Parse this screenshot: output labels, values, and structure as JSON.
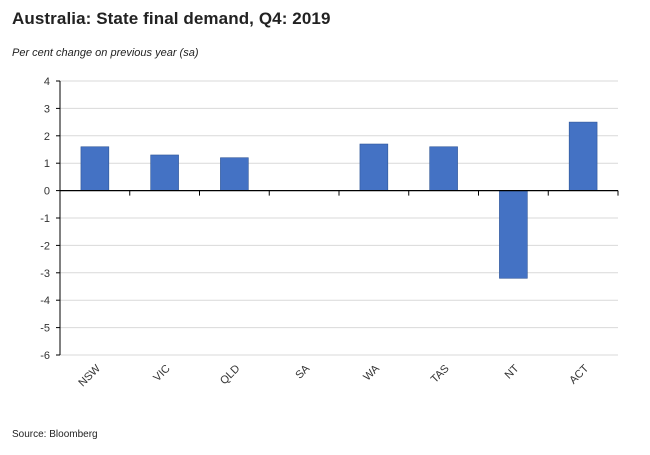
{
  "title": "Australia: State final demand, Q4: 2019",
  "subtitle": "Per cent change on previous year (sa)",
  "source": "Source: Bloomberg",
  "colors": {
    "bar": "#4472C4",
    "bar_edge": "#2F5597",
    "grid": "#D9D9D9",
    "axis": "#000000"
  },
  "chart_data": {
    "type": "bar",
    "title": "Australia: State final demand, Q4: 2019",
    "ylabel": "Per cent change on previous year (sa)",
    "xlabel": "",
    "categories": [
      "NSW",
      "VIC",
      "QLD",
      "SA",
      "WA",
      "TAS",
      "NT",
      "ACT"
    ],
    "values": [
      1.6,
      1.3,
      1.2,
      0.0,
      1.7,
      1.6,
      -3.2,
      2.5
    ],
    "ylim": [
      -6,
      4
    ],
    "yticks": [
      4,
      3,
      2,
      1,
      0,
      -1,
      -2,
      -3,
      -4,
      -5,
      -6
    ],
    "grid": true,
    "legend": "none"
  }
}
